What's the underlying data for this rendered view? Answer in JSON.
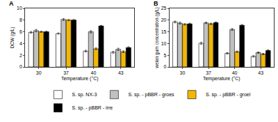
{
  "chart_data": [
    {
      "type": "bar",
      "title": "A",
      "x_label": "Temperature (°C)",
      "y_label": "DCW (g/L)",
      "categories": [
        "30",
        "37",
        "40",
        "43"
      ],
      "series": [
        {
          "name": "S. sp. NX-3",
          "color": "#ffffff",
          "values": [
            5.9,
            5.7,
            2.7,
            2.5
          ],
          "errors": [
            0.15,
            0.1,
            0.15,
            0.15
          ]
        },
        {
          "name": "S. sp. - pBBR - groes",
          "color": "#c0c0c0",
          "values": [
            6.2,
            8.1,
            6.0,
            3.0
          ],
          "errors": [
            0.2,
            0.15,
            0.2,
            0.2
          ]
        },
        {
          "name": "S. sp. - pBBR - groel",
          "color": "#f2b705",
          "values": [
            6.0,
            8.0,
            3.1,
            2.6
          ],
          "errors": [
            0.1,
            0.1,
            0.15,
            0.15
          ]
        },
        {
          "name": "S. sp. - pBBR - irre",
          "color": "#000000",
          "values": [
            6.0,
            8.0,
            7.0,
            3.3
          ],
          "errors": [
            0.1,
            0.1,
            0.1,
            0.15
          ]
        }
      ],
      "ylim": [
        0,
        10
      ],
      "yticks": [
        0,
        2,
        4,
        6,
        8,
        10
      ],
      "grid": false,
      "legend": "bottom"
    },
    {
      "type": "bar",
      "title": "B",
      "x_label": "Temperature (°C)",
      "y_label": "welan gum concentration (g/L)",
      "categories": [
        "30",
        "37",
        "40",
        "43"
      ],
      "series": [
        {
          "name": "S. sp. NX-3",
          "color": "#ffffff",
          "values": [
            19.2,
            10.1,
            5.8,
            4.5
          ],
          "errors": [
            0.4,
            0.4,
            0.3,
            0.3
          ]
        },
        {
          "name": "S. sp. - pBBR - groes",
          "color": "#c0c0c0",
          "values": [
            18.7,
            18.8,
            16.0,
            6.1
          ],
          "errors": [
            0.4,
            0.3,
            0.4,
            0.3
          ]
        },
        {
          "name": "S. sp. - pBBR - groel",
          "color": "#f2b705",
          "values": [
            18.2,
            18.4,
            6.5,
            5.5
          ],
          "errors": [
            0.3,
            0.3,
            0.3,
            0.3
          ]
        },
        {
          "name": "S. sp. - pBBR - irre",
          "color": "#000000",
          "values": [
            18.4,
            18.9,
            17.8,
            7.0
          ],
          "errors": [
            0.3,
            0.3,
            0.3,
            0.3
          ]
        }
      ],
      "ylim": [
        0,
        25
      ],
      "yticks": [
        0,
        5,
        10,
        15,
        20,
        25
      ],
      "grid": false,
      "legend": "bottom"
    }
  ]
}
